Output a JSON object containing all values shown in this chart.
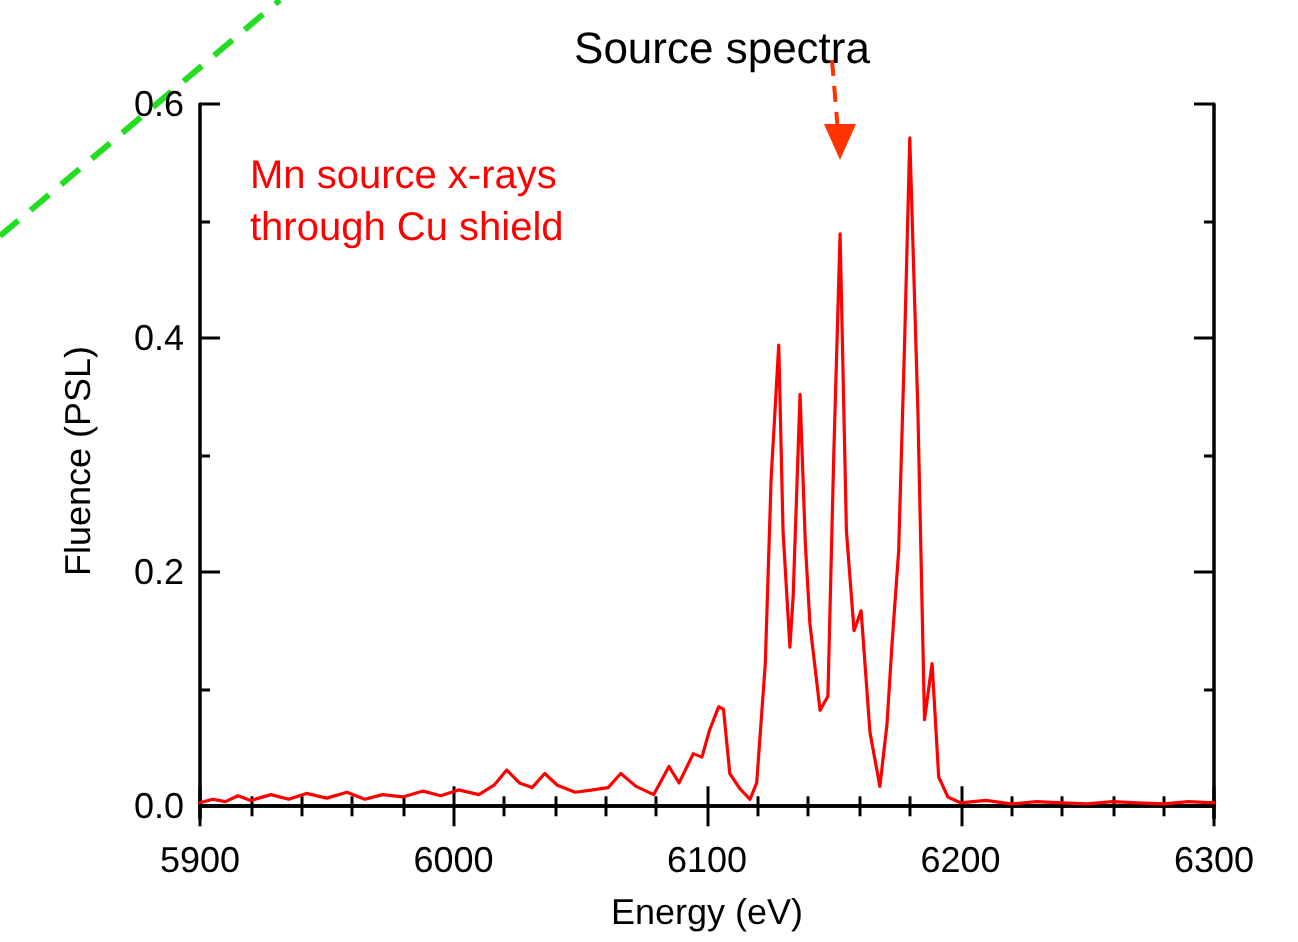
{
  "chart_data": {
    "type": "line",
    "title": "Source spectra",
    "xlabel": "Energy (eV)",
    "ylabel": "Fluence (PSL)",
    "annotations": [
      "Mn source x-rays\nthrough Cu shield"
    ],
    "x": [
      5900,
      5905,
      5910,
      5915,
      5920,
      5928,
      5935,
      5942,
      5950,
      5958,
      5965,
      5972,
      5980,
      5988,
      5995,
      6002,
      6010,
      6016,
      6021,
      6026,
      6031,
      6036,
      6041,
      6048,
      6055,
      6061,
      6066,
      6072,
      6079,
      6085,
      6089,
      6094.6,
      6098,
      6101,
      6104.6,
      6106.5,
      6109,
      6113,
      6117,
      6119.6,
      6123,
      6125.3,
      6128.3,
      6130,
      6132.7,
      6134,
      6136.7,
      6138.8,
      6140.6,
      6144.6,
      6147.7,
      6150,
      6152.5,
      6155,
      6158,
      6160.8,
      6164.3,
      6168.2,
      6171,
      6173,
      6175.6,
      6178,
      6180,
      6183.2,
      6185.8,
      6188.8,
      6191.4,
      6195,
      6200,
      6210,
      6220,
      6230,
      6240,
      6250,
      6260,
      6270,
      6280,
      6290,
      6300
    ],
    "series": [
      {
        "color": "#ff0000",
        "values": [
          0.003,
          0.006,
          0.004,
          0.009,
          0.005,
          0.01,
          0.006,
          0.011,
          0.007,
          0.012,
          0.006,
          0.01,
          0.008,
          0.013,
          0.009,
          0.014,
          0.01,
          0.018,
          0.031,
          0.02,
          0.016,
          0.028,
          0.018,
          0.012,
          0.014,
          0.016,
          0.028,
          0.017,
          0.01,
          0.034,
          0.02,
          0.045,
          0.042,
          0.065,
          0.085,
          0.083,
          0.028,
          0.015,
          0.006,
          0.02,
          0.122,
          0.28,
          0.394,
          0.235,
          0.136,
          0.18,
          0.352,
          0.224,
          0.156,
          0.082,
          0.094,
          0.3,
          0.489,
          0.235,
          0.15,
          0.167,
          0.063,
          0.017,
          0.07,
          0.139,
          0.218,
          0.4,
          0.571,
          0.337,
          0.074,
          0.122,
          0.025,
          0.008,
          0.003,
          0.005,
          0.002,
          0.004,
          0.003,
          0.002,
          0.004,
          0.003,
          0.002,
          0.004,
          0.003
        ]
      }
    ],
    "xlim": [
      5900,
      6300
    ],
    "xticks": [
      5900,
      6000,
      6100,
      6200,
      6300
    ],
    "ylim": [
      -0.01,
      0.6
    ],
    "yticks": [
      {
        "value": 0,
        "label": "0.0"
      },
      0.2,
      0.4,
      0.6
    ],
    "grid": false,
    "marker": "none",
    "line_style": "solid"
  }
}
